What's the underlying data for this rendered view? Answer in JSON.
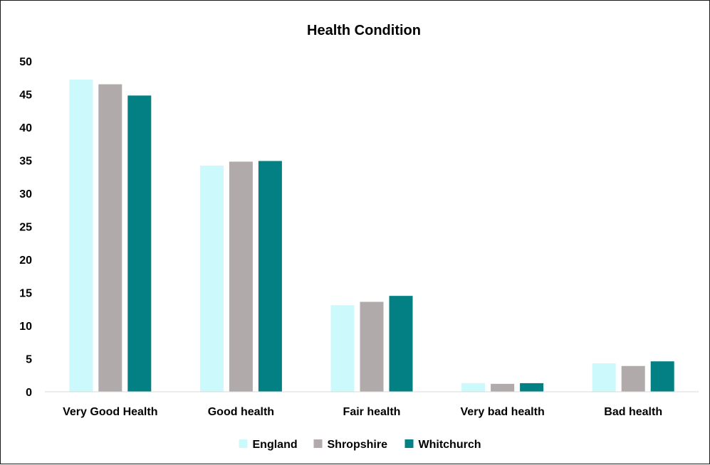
{
  "chart_data": {
    "type": "bar",
    "title": "Health Condition",
    "xlabel": "",
    "ylabel": "",
    "ylim": [
      0,
      50
    ],
    "yticks": [
      0,
      5,
      10,
      15,
      20,
      25,
      30,
      35,
      40,
      45,
      50
    ],
    "grid": false,
    "legend": "bottom",
    "categories": [
      "Very Good Health",
      "Good health",
      "Fair health",
      "Very bad health",
      "Bad health"
    ],
    "series": [
      {
        "name": "England",
        "color": "#ccf9fb",
        "values": [
          47.2,
          34.2,
          13.1,
          1.3,
          4.3
        ]
      },
      {
        "name": "Shropshire",
        "color": "#b0aaaa",
        "values": [
          46.5,
          34.8,
          13.6,
          1.2,
          3.9
        ]
      },
      {
        "name": "Whitchurch",
        "color": "#038084",
        "values": [
          44.8,
          34.9,
          14.5,
          1.3,
          4.6
        ]
      }
    ]
  }
}
